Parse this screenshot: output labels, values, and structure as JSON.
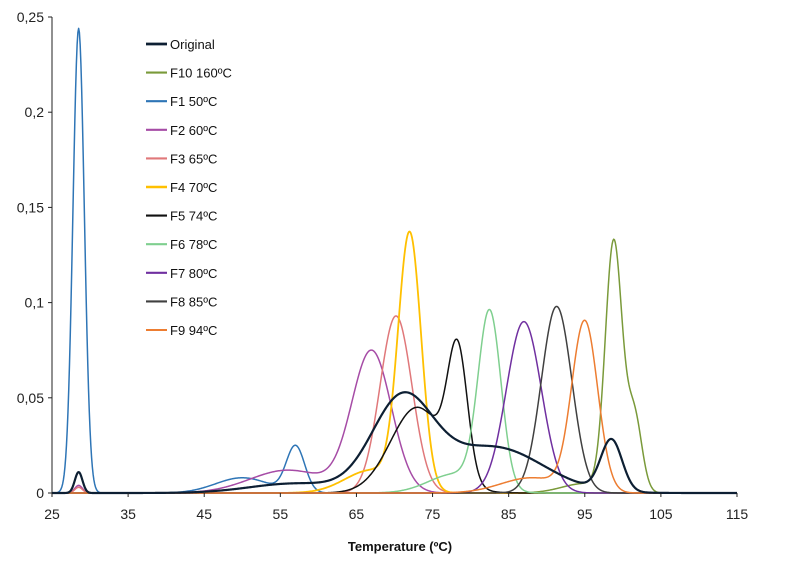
{
  "chart_data": {
    "type": "line",
    "xlabel": "Temperature (ºC)",
    "ylabel": "",
    "xlim": [
      25,
      115
    ],
    "ylim": [
      0,
      0.25
    ],
    "x_ticks": [
      25,
      35,
      45,
      55,
      65,
      75,
      85,
      95,
      105,
      115
    ],
    "x_tick_labels": [
      "25",
      "35",
      "45",
      "55",
      "65",
      "75",
      "85",
      "95",
      "105",
      "115"
    ],
    "y_ticks": [
      0,
      0.05,
      0.1,
      0.15,
      0.2,
      0.25
    ],
    "y_tick_labels": [
      "0",
      "0,05",
      "0,1",
      "0,15",
      "0,2",
      "0,25"
    ],
    "grid": false,
    "legend_position": "top-left",
    "series": [
      {
        "name": "Original",
        "color": "#0d1f33",
        "width": 2.2,
        "peaks": [
          {
            "c": 28.5,
            "h": 0.011,
            "w": 0.5
          },
          {
            "c": 57,
            "h": 0.005,
            "w": 6
          },
          {
            "c": 71,
            "h": 0.048,
            "w": 4.0
          },
          {
            "c": 83,
            "h": 0.024,
            "w": 6.5
          },
          {
            "c": 98.5,
            "h": 0.027,
            "w": 1.4
          }
        ]
      },
      {
        "name": "F10 160ºC",
        "color": "#7a9a3a",
        "width": 1.5,
        "peaks": [
          {
            "c": 98.8,
            "h": 0.13,
            "w": 1.1
          },
          {
            "c": 101.5,
            "h": 0.04,
            "w": 1.0
          },
          {
            "c": 95,
            "h": 0.005,
            "w": 3
          }
        ]
      },
      {
        "name": "F1 50ºC",
        "color": "#2e75b6",
        "width": 1.5,
        "peaks": [
          {
            "c": 28.5,
            "h": 0.244,
            "w": 0.75
          },
          {
            "c": 50,
            "h": 0.008,
            "w": 3.5
          },
          {
            "c": 57,
            "h": 0.024,
            "w": 1.2
          }
        ]
      },
      {
        "name": "F2 60ºC",
        "color": "#a64ca6",
        "width": 1.5,
        "peaks": [
          {
            "c": 28.5,
            "h": 0.004,
            "w": 0.5
          },
          {
            "c": 56,
            "h": 0.012,
            "w": 5
          },
          {
            "c": 67,
            "h": 0.074,
            "w": 2.6
          }
        ]
      },
      {
        "name": "F3 65ºC",
        "color": "#e0787a",
        "width": 1.5,
        "peaks": [
          {
            "c": 28.5,
            "h": 0.003,
            "w": 0.5
          },
          {
            "c": 70.2,
            "h": 0.093,
            "w": 2.1
          }
        ]
      },
      {
        "name": "F4 70ºC",
        "color": "#ffc000",
        "width": 1.8,
        "peaks": [
          {
            "c": 72,
            "h": 0.133,
            "w": 1.5
          },
          {
            "c": 67,
            "h": 0.012,
            "w": 3.5
          }
        ]
      },
      {
        "name": "F5 74ºC",
        "color": "#111111",
        "width": 1.5,
        "peaks": [
          {
            "c": 78.3,
            "h": 0.066,
            "w": 1.3
          },
          {
            "c": 73,
            "h": 0.045,
            "w": 3.5
          }
        ]
      },
      {
        "name": "F6 78ºC",
        "color": "#7fcf8f",
        "width": 1.5,
        "peaks": [
          {
            "c": 82.5,
            "h": 0.092,
            "w": 1.5
          },
          {
            "c": 78,
            "h": 0.01,
            "w": 3.5
          }
        ]
      },
      {
        "name": "F7 80ºC",
        "color": "#7030a0",
        "width": 1.5,
        "peaks": [
          {
            "c": 87,
            "h": 0.09,
            "w": 2.3
          }
        ]
      },
      {
        "name": "F8 85ºC",
        "color": "#404040",
        "width": 1.5,
        "peaks": [
          {
            "c": 91.3,
            "h": 0.098,
            "w": 2.0
          }
        ]
      },
      {
        "name": "F9 94ºC",
        "color": "#ed7d31",
        "width": 1.5,
        "peaks": [
          {
            "c": 95,
            "h": 0.089,
            "w": 1.7
          },
          {
            "c": 88,
            "h": 0.008,
            "w": 4
          }
        ]
      }
    ]
  }
}
